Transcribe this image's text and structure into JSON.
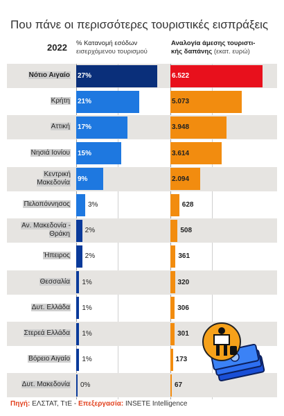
{
  "title": "Που πάνε οι περισσότερες τουριστικές εισπράξεις",
  "year": "2022",
  "col1": {
    "header": "% Κατανομή εσόδων",
    "sub": "εισερχόμενου τουρισμού"
  },
  "col2": {
    "header1": "Αναλογία άμεσης τουριστι-",
    "header2": "κής δαπάνης",
    "unit": "(εκατ. ευρώ)"
  },
  "footer": {
    "source_key": "Πηγή:",
    "source": " ΕΛΣΤΑΤ, ΤτΕ - ",
    "proc_key": "Επεξεργασία:",
    "proc": " INSETE Intelligence"
  },
  "colors": {
    "pct_top": "#0a2f7a",
    "pct": "#1e78e0",
    "spend_top": "#e8101c",
    "spend": "#f28c0f"
  },
  "chart_data": {
    "type": "bar",
    "categories": [
      "Νότιο Αιγαίο",
      "Κρήτη",
      "Αττική",
      "Νησιά Ιονίου",
      "Κεντρική Μακεδονία",
      "Πελοπόννησος",
      "Αν. Μακεδονία - Θράκη",
      "Ήπειρος",
      "Θεσσαλία",
      "Δυτ. Ελλάδα",
      "Στερεά Ελλάδα",
      "Βόρειο Αιγαίο",
      "Δυτ. Μακεδονία"
    ],
    "series": [
      {
        "name": "% Κατανομή εσόδων εισερχόμενου τουρισμού",
        "values": [
          27,
          21,
          17,
          15,
          9,
          3,
          2,
          2,
          1,
          1,
          1,
          1,
          0
        ],
        "labels": [
          "27%",
          "21%",
          "17%",
          "15%",
          "9%",
          "3%",
          "2%",
          "2%",
          "1%",
          "1%",
          "1%",
          "1%",
          "0%"
        ]
      },
      {
        "name": "Αναλογία άμεσης τουριστικής δαπάνης (εκατ. ευρώ)",
        "values": [
          6522,
          5073,
          3948,
          3614,
          2094,
          628,
          508,
          361,
          320,
          306,
          301,
          173,
          67
        ],
        "labels": [
          "6.522",
          "5.073",
          "3.948",
          "3.614",
          "2.094",
          "628",
          "508",
          "361",
          "320",
          "306",
          "301",
          "173",
          "67"
        ]
      }
    ]
  }
}
